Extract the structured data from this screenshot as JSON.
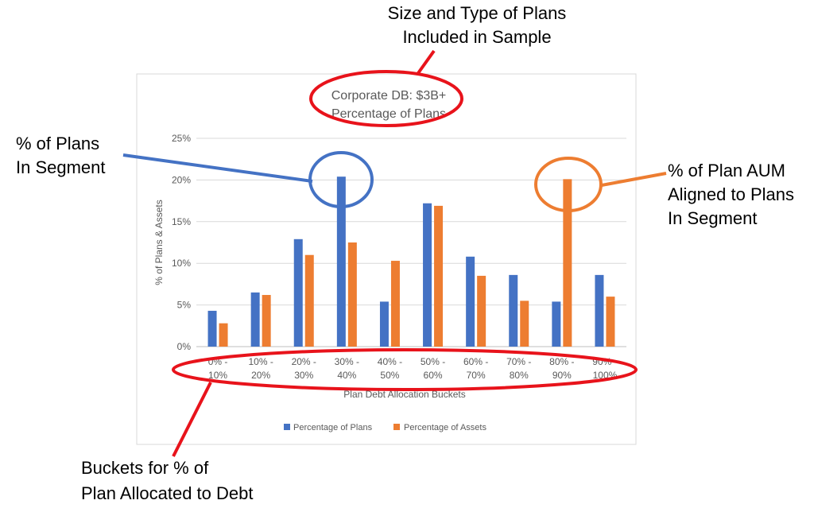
{
  "annotations": {
    "sample_note": [
      "Size and Type of Plans",
      "Included in Sample"
    ],
    "plans_note": [
      "% of Plans",
      "In Segment"
    ],
    "aum_note": [
      "% of Plan AUM",
      "Aligned to Plans",
      "In Segment"
    ],
    "buckets_note": [
      "Buckets for % of",
      "Plan Allocated to Debt"
    ]
  },
  "colors": {
    "plans": "#4472C4",
    "assets": "#ED7D31",
    "highlight_red": "#E8131B",
    "grid": "#D9D9D9",
    "text": "#595959"
  },
  "chart_data": {
    "type": "bar",
    "title": "Corporate DB: $3B+",
    "subtitle": "Percentage of Plans",
    "xlabel": "Plan Debt Allocation Buckets",
    "ylabel": "% of Plans & Assets",
    "ylim": [
      0,
      25
    ],
    "yticks": [
      "0%",
      "5%",
      "10%",
      "15%",
      "20%",
      "25%"
    ],
    "grid": true,
    "legend_position": "bottom",
    "categories": [
      [
        "0% -",
        "10%"
      ],
      [
        "10% -",
        "20%"
      ],
      [
        "20% -",
        "30%"
      ],
      [
        "30% -",
        "40%"
      ],
      [
        "40% -",
        "50%"
      ],
      [
        "50% -",
        "60%"
      ],
      [
        "60% -",
        "70%"
      ],
      [
        "70% -",
        "80%"
      ],
      [
        "80% -",
        "90%"
      ],
      [
        "90% -",
        "100%"
      ]
    ],
    "series": [
      {
        "name": "Percentage of Plans",
        "values": [
          4.3,
          6.5,
          12.9,
          20.4,
          5.4,
          17.2,
          10.8,
          8.6,
          5.4,
          8.6
        ]
      },
      {
        "name": "Percentage of Assets",
        "values": [
          2.8,
          6.2,
          11.0,
          12.5,
          10.3,
          16.9,
          8.5,
          5.5,
          20.1,
          6.0
        ]
      }
    ]
  }
}
